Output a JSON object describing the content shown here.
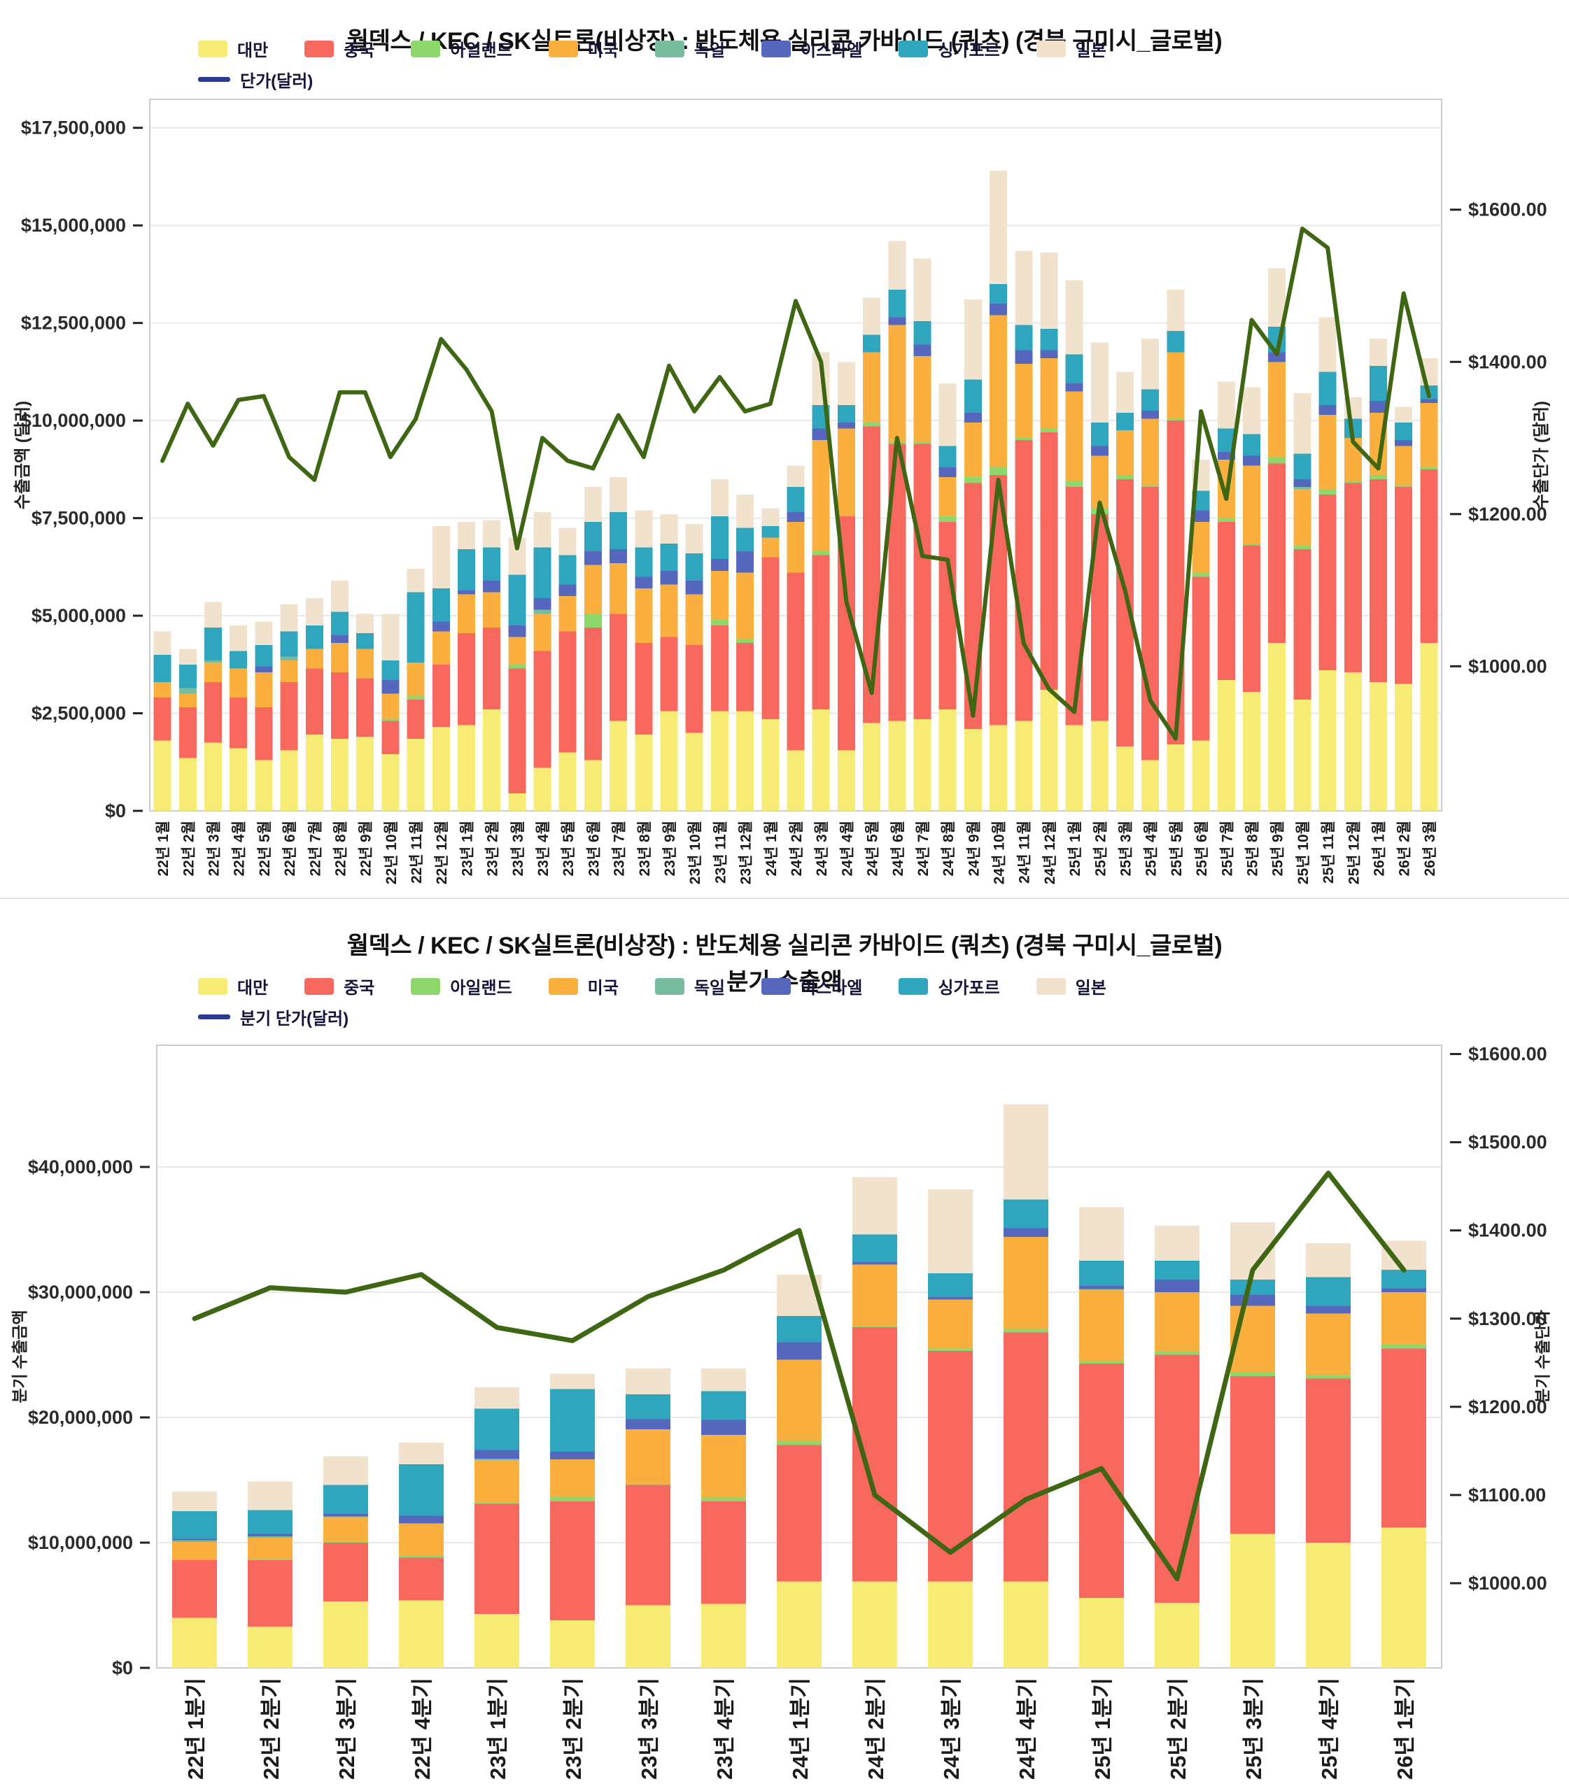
{
  "top_chart": {
    "title": "월덱스 / KEC / SK실트론(비상장) : 반도체용 실리콘 카바이드 (쿼츠) (경북 구미시_글로벌)",
    "line_legend_label": "단가(달러)"
  },
  "bottom_chart": {
    "title": "월덱스 / KEC / SK실트론(비상장) : 반도체용 실리콘 카바이드 (쿼츠) (경북 구미시_글로벌)",
    "subtitle": "분기 수출액",
    "line_legend_label": "분기 단가(달러)"
  },
  "colors": {
    "taiwan": "#F6EC75",
    "china": "#F8685F",
    "ireland": "#8ED86B",
    "usa": "#FBAF3E",
    "germany": "#78BCA0",
    "israel": "#5668BE",
    "singapore": "#2FA6BD",
    "japan": "#F1E2CE",
    "price_line": "#3E6613",
    "legend_line": "#2B3990",
    "grid": "#E8E8E8",
    "plot_border": "#CCCCCC"
  },
  "chart_data": [
    {
      "id": "monthly",
      "type": "bar",
      "stacked": true,
      "title": "월덱스 / KEC / SK실트론(비상장) : 반도체용 실리콘 카바이드 (쿼츠) (경북 구미시_글로벌)",
      "ylabel": "수출금액 (달러)",
      "y2label": "수출단가 (달러)",
      "grid": true,
      "legend_position": "top",
      "ylim": [
        0,
        18230000
      ],
      "y2lim": [
        810,
        1745
      ],
      "yticks": {
        "values": [
          0,
          2500000,
          5000000,
          7500000,
          10000000,
          12500000,
          15000000,
          17500000
        ],
        "labels": [
          "$0",
          "$2,500,000",
          "$5,000,000",
          "$7,500,000",
          "$10,000,000",
          "$12,500,000",
          "$15,000,000",
          "$17,500,000"
        ]
      },
      "y2ticks": {
        "values": [
          1000,
          1200,
          1400,
          1600
        ],
        "labels": [
          "$1000.00",
          "$1200.00",
          "$1400.00",
          "$1600.00"
        ]
      },
      "categories": [
        "22년 1월",
        "22년 2월",
        "22년 3월",
        "22년 4월",
        "22년 5월",
        "22년 6월",
        "22년 7월",
        "22년 8월",
        "22년 9월",
        "22년 10월",
        "22년 11월",
        "22년 12월",
        "23년 1월",
        "23년 2월",
        "23년 3월",
        "23년 4월",
        "23년 5월",
        "23년 6월",
        "23년 7월",
        "23년 8월",
        "23년 9월",
        "23년 10월",
        "23년 11월",
        "23년 12월",
        "24년 1월",
        "24년 2월",
        "24년 3월",
        "24년 4월",
        "24년 5월",
        "24년 6월",
        "24년 7월",
        "24년 8월",
        "24년 9월",
        "24년 10월",
        "24년 11월",
        "24년 12월",
        "25년 1월",
        "25년 2월",
        "25년 3월",
        "25년 4월",
        "25년 5월",
        "25년 6월",
        "25년 7월",
        "25년 8월",
        "25년 9월",
        "25년 10월",
        "25년 11월",
        "25년 12월",
        "26년 1월",
        "26년 2월",
        "26년 3월"
      ],
      "series": [
        {
          "name": "대만",
          "color": "#F6EC75",
          "values": [
            1800000,
            1350000,
            1750000,
            1600000,
            1300000,
            1550000,
            1950000,
            1850000,
            1900000,
            1450000,
            1850000,
            2150000,
            2200000,
            2600000,
            450000,
            1100000,
            1500000,
            1300000,
            2300000,
            1950000,
            2550000,
            2000000,
            2550000,
            2550000,
            2350000,
            1550000,
            2600000,
            1550000,
            2250000,
            2300000,
            2350000,
            2600000,
            2100000,
            2200000,
            2300000,
            3100000,
            2200000,
            2300000,
            1650000,
            1300000,
            1700000,
            1800000,
            3350000,
            3050000,
            4300000,
            2850000,
            3600000,
            3550000,
            3300000,
            3250000,
            4300000
          ]
        },
        {
          "name": "중국",
          "color": "#F8685F",
          "values": [
            1100000,
            1300000,
            1550000,
            1300000,
            1350000,
            1750000,
            1700000,
            1700000,
            1500000,
            850000,
            1000000,
            1600000,
            2350000,
            2100000,
            3200000,
            3000000,
            3100000,
            3400000,
            2750000,
            2350000,
            1900000,
            2250000,
            2200000,
            1750000,
            4150000,
            4550000,
            3950000,
            6000000,
            7600000,
            7100000,
            7050000,
            4800000,
            6300000,
            6400000,
            7200000,
            6600000,
            6100000,
            5300000,
            6850000,
            7000000,
            8300000,
            4200000,
            4050000,
            3750000,
            4600000,
            3850000,
            4500000,
            4850000,
            5200000,
            5050000,
            4450000
          ]
        },
        {
          "name": "아일랜드",
          "color": "#8ED86B",
          "values": [
            0,
            0,
            0,
            0,
            0,
            0,
            0,
            0,
            0,
            50000,
            100000,
            0,
            0,
            0,
            100000,
            0,
            0,
            350000,
            0,
            0,
            0,
            0,
            150000,
            100000,
            0,
            0,
            100000,
            0,
            100000,
            50000,
            50000,
            150000,
            150000,
            200000,
            50000,
            100000,
            150000,
            150000,
            100000,
            50000,
            50000,
            100000,
            100000,
            50000,
            150000,
            100000,
            150000,
            50000,
            100000,
            50000,
            50000
          ]
        },
        {
          "name": "미국",
          "color": "#FBAF3E",
          "values": [
            400000,
            350000,
            500000,
            750000,
            900000,
            550000,
            500000,
            750000,
            750000,
            650000,
            850000,
            850000,
            1000000,
            900000,
            700000,
            950000,
            900000,
            1250000,
            1300000,
            1400000,
            1350000,
            1300000,
            1250000,
            1700000,
            500000,
            1300000,
            2850000,
            2250000,
            1800000,
            3000000,
            2200000,
            1000000,
            1400000,
            3900000,
            1900000,
            1800000,
            2300000,
            1350000,
            1150000,
            1700000,
            1700000,
            1300000,
            1500000,
            2000000,
            2450000,
            1450000,
            1900000,
            1100000,
            1600000,
            1000000,
            1650000
          ]
        },
        {
          "name": "독일",
          "color": "#78BCA0",
          "values": [
            0,
            150000,
            50000,
            0,
            0,
            100000,
            0,
            0,
            0,
            0,
            0,
            0,
            0,
            0,
            0,
            100000,
            0,
            0,
            0,
            0,
            0,
            0,
            0,
            0,
            0,
            0,
            0,
            0,
            0,
            0,
            0,
            0,
            0,
            0,
            0,
            0,
            0,
            0,
            0,
            0,
            0,
            0,
            0,
            0,
            0,
            50000,
            0,
            0,
            0,
            0,
            0
          ]
        },
        {
          "name": "이스라엘",
          "color": "#5668BE",
          "values": [
            0,
            0,
            0,
            0,
            150000,
            0,
            0,
            200000,
            0,
            350000,
            0,
            250000,
            100000,
            300000,
            300000,
            300000,
            300000,
            350000,
            350000,
            300000,
            350000,
            350000,
            300000,
            550000,
            0,
            250000,
            300000,
            150000,
            0,
            200000,
            300000,
            250000,
            250000,
            300000,
            350000,
            200000,
            200000,
            250000,
            0,
            200000,
            0,
            300000,
            200000,
            250000,
            250000,
            200000,
            250000,
            0,
            300000,
            150000,
            100000
          ]
        },
        {
          "name": "싱가포르",
          "color": "#2FA6BD",
          "values": [
            700000,
            600000,
            850000,
            450000,
            550000,
            650000,
            600000,
            600000,
            400000,
            500000,
            1800000,
            850000,
            1050000,
            850000,
            1300000,
            1300000,
            750000,
            750000,
            950000,
            750000,
            700000,
            700000,
            1100000,
            600000,
            300000,
            650000,
            600000,
            450000,
            450000,
            700000,
            600000,
            550000,
            850000,
            500000,
            650000,
            550000,
            750000,
            600000,
            450000,
            550000,
            550000,
            500000,
            600000,
            550000,
            650000,
            650000,
            850000,
            500000,
            900000,
            450000,
            350000
          ]
        },
        {
          "name": "일본",
          "color": "#F1E2CE",
          "values": [
            600000,
            400000,
            650000,
            650000,
            600000,
            700000,
            700000,
            800000,
            500000,
            1200000,
            600000,
            1600000,
            700000,
            700000,
            950000,
            900000,
            700000,
            900000,
            900000,
            950000,
            750000,
            750000,
            950000,
            850000,
            450000,
            550000,
            1350000,
            1100000,
            950000,
            1250000,
            1600000,
            1600000,
            2050000,
            2900000,
            1900000,
            1950000,
            1900000,
            2050000,
            1050000,
            1300000,
            1050000,
            800000,
            1200000,
            1200000,
            1500000,
            1550000,
            1400000,
            550000,
            700000,
            400000,
            700000
          ]
        }
      ],
      "line_series": {
        "name": "단가(달러)",
        "color": "#3E6613",
        "values": [
          1270,
          1345,
          1290,
          1350,
          1355,
          1275,
          1245,
          1360,
          1360,
          1275,
          1325,
          1430,
          1390,
          1335,
          1155,
          1300,
          1270,
          1260,
          1330,
          1275,
          1395,
          1335,
          1380,
          1335,
          1345,
          1480,
          1400,
          1085,
          965,
          1300,
          1145,
          1140,
          935,
          1245,
          1030,
          970,
          940,
          1215,
          1100,
          955,
          905,
          1335,
          1220,
          1455,
          1410,
          1575,
          1550,
          1295,
          1260,
          1490,
          1355
        ]
      }
    },
    {
      "id": "quarterly",
      "type": "bar",
      "stacked": true,
      "title": "분기 수출액",
      "ylabel": "분기 수출금액",
      "y2label": "분기 수출단가",
      "grid": true,
      "legend_position": "top",
      "ylim": [
        0,
        49720000
      ],
      "y2lim": [
        904,
        1610
      ],
      "yticks": {
        "values": [
          0,
          10000000,
          20000000,
          30000000,
          40000000
        ],
        "labels": [
          "$0",
          "$10,000,000",
          "$20,000,000",
          "$30,000,000",
          "$40,000,000"
        ]
      },
      "y2ticks": {
        "values": [
          1000,
          1100,
          1200,
          1300,
          1400,
          1500,
          1600
        ],
        "labels": [
          "$1000.00",
          "$1100.00",
          "$1200.00",
          "$1300.00",
          "$1400.00",
          "$1500.00",
          "$1600.00"
        ]
      },
      "categories": [
        "22년 1분기",
        "22년 2분기",
        "22년 3분기",
        "22년 4분기",
        "23년 1분기",
        "23년 2분기",
        "23년 3분기",
        "23년 4분기",
        "24년 1분기",
        "24년 2분기",
        "24년 3분기",
        "24년 4분기",
        "25년 1분기",
        "25년 2분기",
        "25년 3분기",
        "25년 4분기",
        "26년 1분기"
      ],
      "series": [
        {
          "name": "대만",
          "color": "#F6EC75",
          "values": [
            4000000,
            3300000,
            5300000,
            5400000,
            4300000,
            3800000,
            5000000,
            5100000,
            6900000,
            6900000,
            6900000,
            6900000,
            5600000,
            5200000,
            10700000,
            10000000,
            11200000
          ]
        },
        {
          "name": "중국",
          "color": "#F8685F",
          "values": [
            4600000,
            5300000,
            4700000,
            3400000,
            8800000,
            9500000,
            9600000,
            8200000,
            10900000,
            20300000,
            18400000,
            19900000,
            18700000,
            19800000,
            12600000,
            13100000,
            14300000
          ]
        },
        {
          "name": "아일랜드",
          "color": "#8ED86B",
          "values": [
            50000,
            100000,
            50000,
            150000,
            100000,
            350000,
            50000,
            300000,
            300000,
            100000,
            200000,
            300000,
            200000,
            300000,
            300000,
            300000,
            300000
          ]
        },
        {
          "name": "미국",
          "color": "#FBAF3E",
          "values": [
            1400000,
            1700000,
            2000000,
            2600000,
            3400000,
            3000000,
            4400000,
            5000000,
            6500000,
            4900000,
            3900000,
            7300000,
            5700000,
            4700000,
            5300000,
            4900000,
            4200000
          ]
        },
        {
          "name": "독일",
          "color": "#78BCA0",
          "values": [
            150000,
            100000,
            50000,
            0,
            100000,
            0,
            0,
            0,
            0,
            0,
            0,
            0,
            50000,
            0,
            0,
            0,
            0
          ]
        },
        {
          "name": "이스라엘",
          "color": "#5668BE",
          "values": [
            100000,
            200000,
            200000,
            600000,
            700000,
            600000,
            800000,
            1200000,
            1400000,
            200000,
            200000,
            700000,
            250000,
            1000000,
            900000,
            600000,
            300000
          ]
        },
        {
          "name": "싱가포르",
          "color": "#2FA6BD",
          "values": [
            2200000,
            1900000,
            2300000,
            4100000,
            3300000,
            5000000,
            2000000,
            2300000,
            2100000,
            2200000,
            1900000,
            2300000,
            2000000,
            1500000,
            1200000,
            2300000,
            1500000
          ]
        },
        {
          "name": "일본",
          "color": "#F1E2CE",
          "values": [
            1600000,
            2300000,
            2300000,
            1750000,
            1700000,
            1250000,
            2050000,
            1800000,
            3300000,
            4600000,
            6700000,
            7600000,
            4300000,
            2800000,
            4600000,
            2700000,
            2300000
          ]
        }
      ],
      "line_series": {
        "name": "분기 단가(달러)",
        "color": "#3E6613",
        "values": [
          1300,
          1335,
          1330,
          1350,
          1290,
          1275,
          1325,
          1355,
          1400,
          1100,
          1035,
          1095,
          1130,
          1005,
          1355,
          1465,
          1355
        ]
      }
    }
  ]
}
